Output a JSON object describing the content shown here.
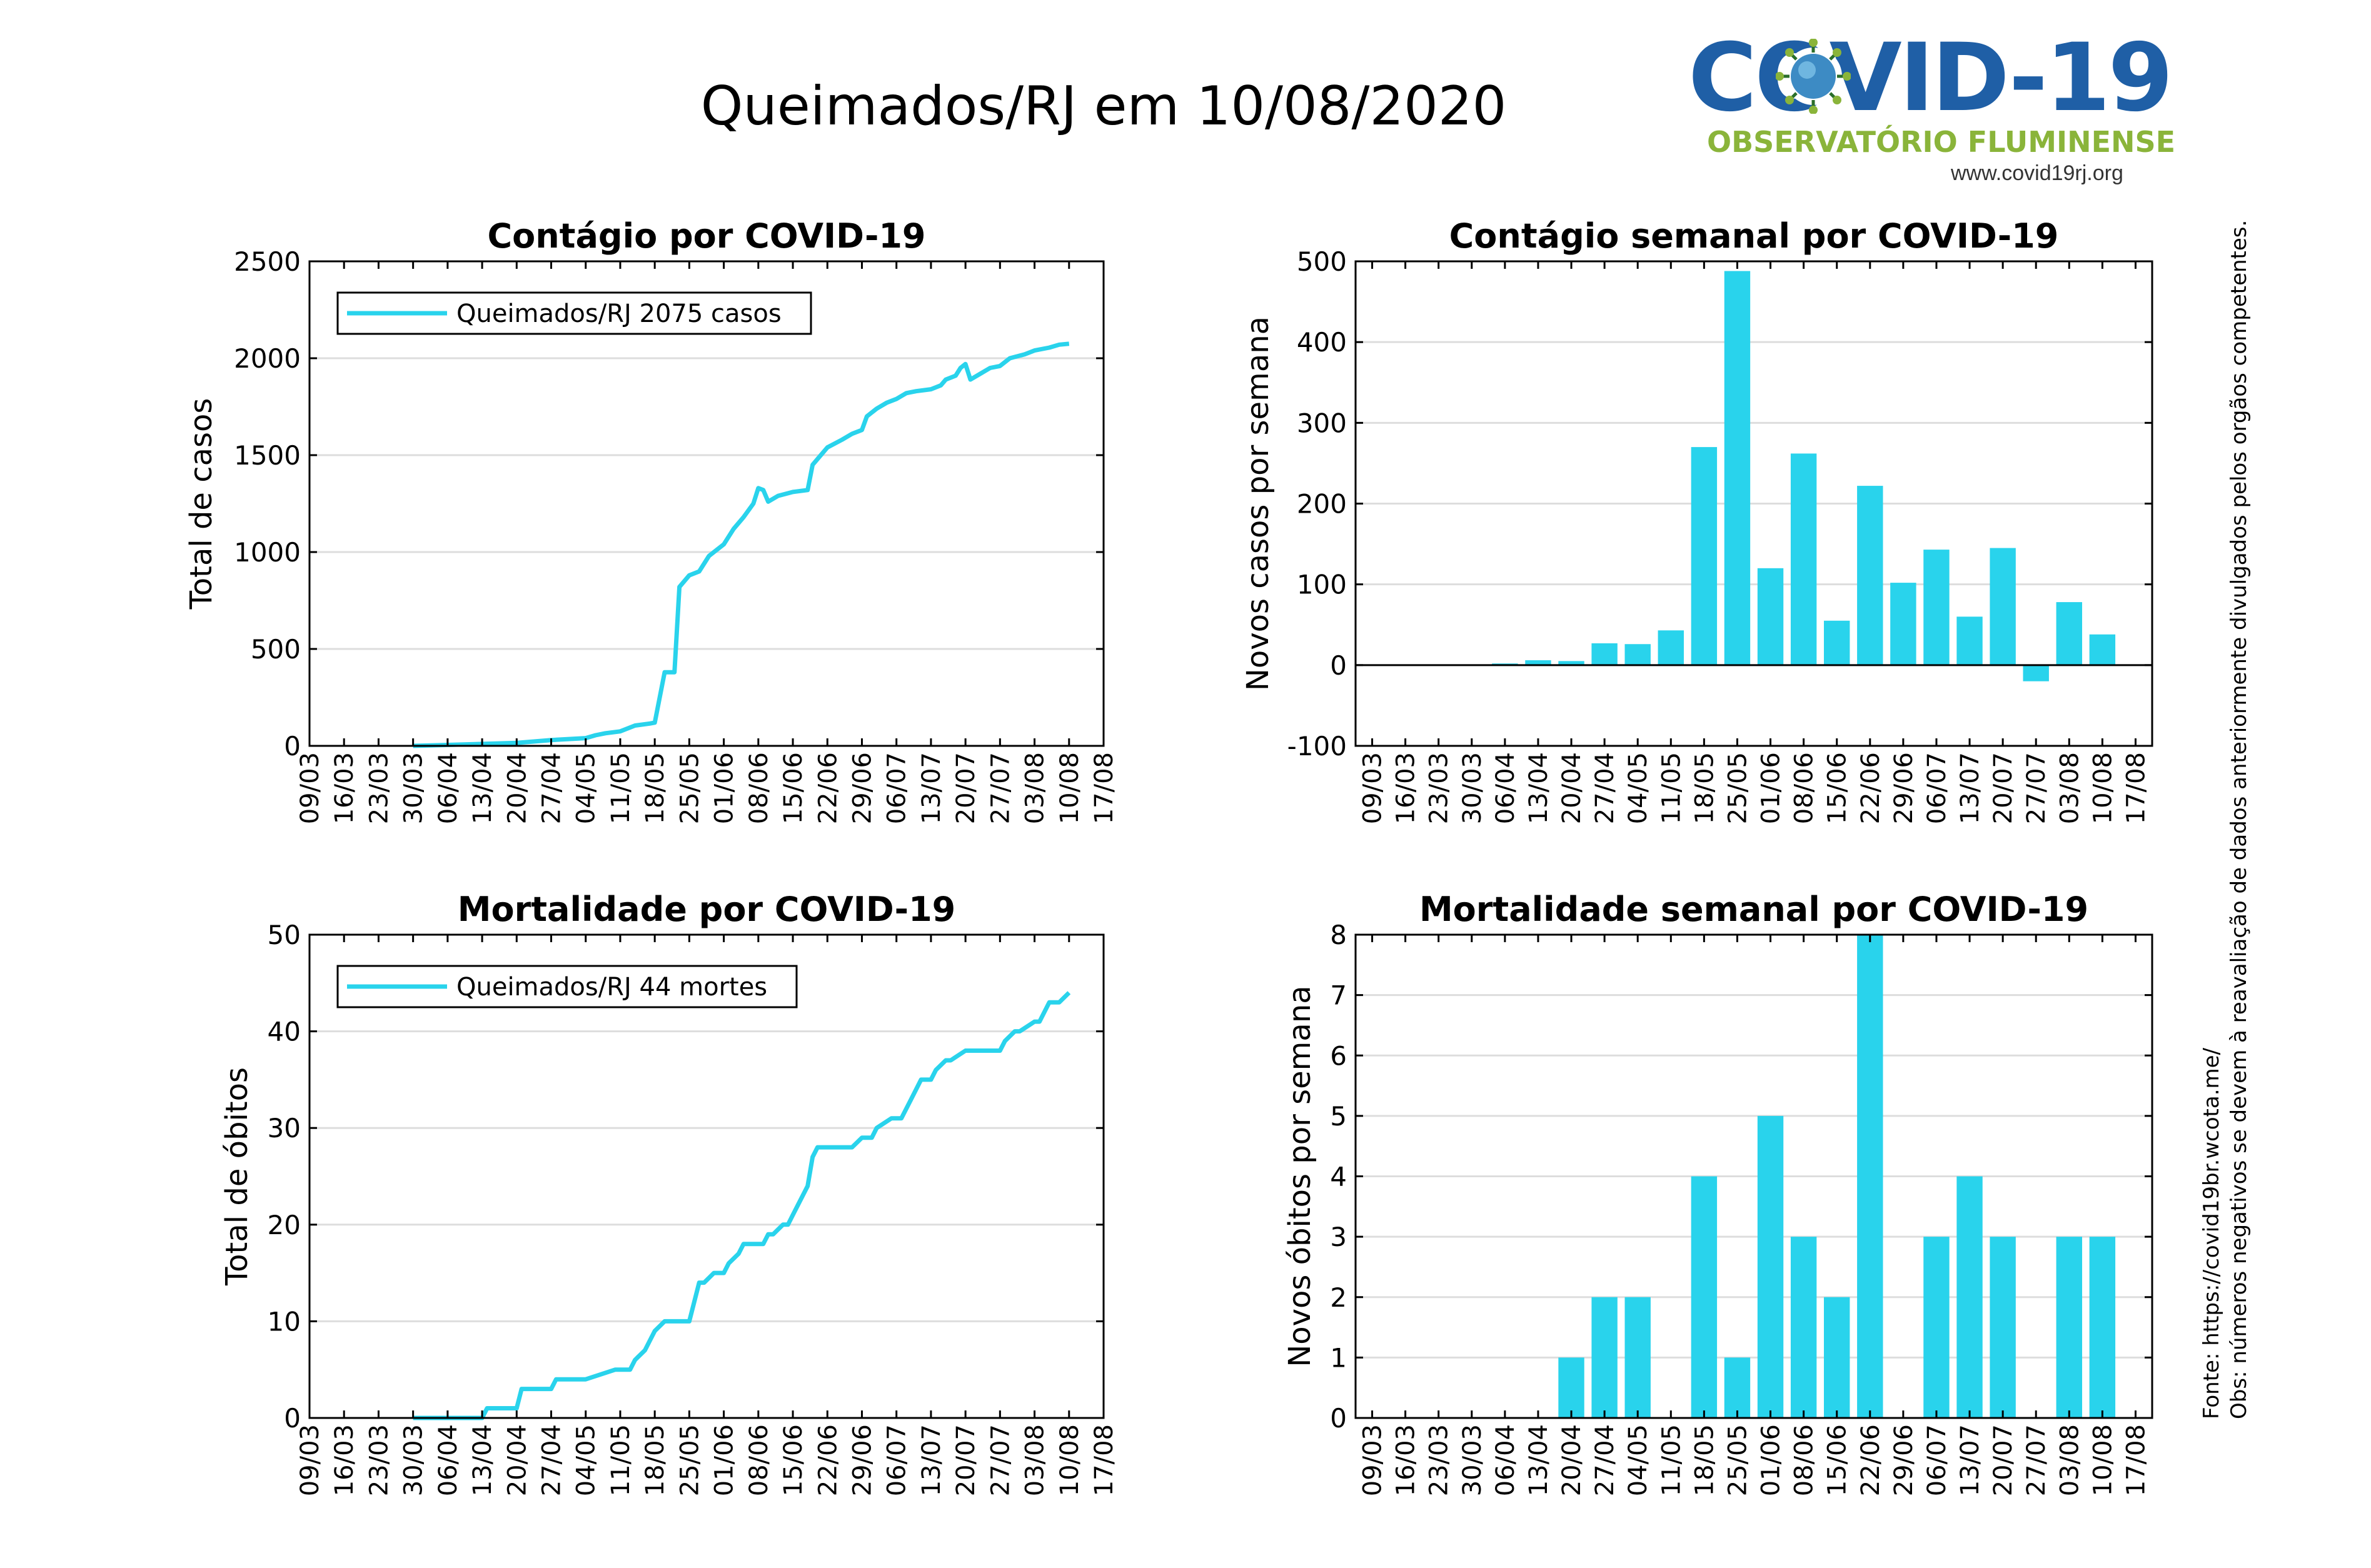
{
  "title": "Queimados/RJ em 10/08/2020",
  "logo": {
    "word": "COVID-19",
    "subtitle": "OBSERVATÓRIO FLUMINENSE",
    "url": "www.covid19rj.org"
  },
  "side_note": {
    "source": "Fonte: https://covid19br.wcota.me/",
    "obs": "Obs: números negativos se devem à reavaliação de dados anteriormente divulgados pelos orgãos competentes."
  },
  "colors": {
    "series": "#29d3ec",
    "grid": "#dddddd"
  },
  "chart_data": [
    {
      "type": "line",
      "title": "Contágio por COVID-19",
      "ylabel": "Total de casos",
      "xlabel": "",
      "x_ticks": [
        "09/03",
        "16/03",
        "23/03",
        "30/03",
        "06/04",
        "13/04",
        "20/04",
        "27/04",
        "04/05",
        "11/05",
        "18/05",
        "25/05",
        "01/06",
        "08/06",
        "15/06",
        "22/06",
        "29/06",
        "06/07",
        "13/07",
        "20/07",
        "27/07",
        "03/08",
        "10/08",
        "17/08"
      ],
      "xlim": [
        "09/03",
        "17/08"
      ],
      "ylim": [
        0,
        2500
      ],
      "y_ticks": [
        0,
        500,
        1000,
        1500,
        2000,
        2500
      ],
      "legend": "Queimados/RJ  2075 casos",
      "legend_position": "top-left",
      "grid": true,
      "series": [
        {
          "name": "Queimados/RJ",
          "x": [
            "30/03",
            "06/04",
            "13/04",
            "20/04",
            "27/04",
            "04/05",
            "06/05",
            "08/05",
            "11/05",
            "14/05",
            "17/05",
            "18/05",
            "20/05",
            "21/05",
            "22/05",
            "23/05",
            "25/05",
            "27/05",
            "29/05",
            "01/06",
            "03/06",
            "05/06",
            "07/06",
            "08/06",
            "09/06",
            "10/06",
            "12/06",
            "15/06",
            "18/06",
            "19/06",
            "20/06",
            "22/06",
            "25/06",
            "27/06",
            "29/06",
            "30/06",
            "02/07",
            "04/07",
            "06/07",
            "08/07",
            "10/07",
            "13/07",
            "15/07",
            "16/07",
            "18/07",
            "19/07",
            "20/07",
            "21/07",
            "23/07",
            "25/07",
            "27/07",
            "29/07",
            "01/08",
            "03/08",
            "06/08",
            "08/08",
            "10/08"
          ],
          "y": [
            0,
            5,
            10,
            15,
            30,
            40,
            55,
            65,
            75,
            105,
            115,
            120,
            380,
            380,
            380,
            820,
            880,
            900,
            980,
            1040,
            1120,
            1180,
            1250,
            1330,
            1320,
            1260,
            1290,
            1310,
            1320,
            1450,
            1480,
            1540,
            1580,
            1610,
            1630,
            1700,
            1740,
            1770,
            1790,
            1820,
            1830,
            1840,
            1860,
            1890,
            1910,
            1950,
            1970,
            1890,
            1920,
            1950,
            1960,
            2000,
            2020,
            2040,
            2055,
            2070,
            2075
          ]
        }
      ]
    },
    {
      "type": "bar",
      "title": "Contágio semanal por COVID-19",
      "ylabel": "Novos casos por semana",
      "xlabel": "",
      "categories": [
        "09/03",
        "16/03",
        "23/03",
        "30/03",
        "06/04",
        "13/04",
        "20/04",
        "27/04",
        "04/05",
        "11/05",
        "18/05",
        "25/05",
        "01/06",
        "08/06",
        "15/06",
        "22/06",
        "29/06",
        "06/07",
        "13/07",
        "20/07",
        "27/07",
        "03/08",
        "10/08",
        "17/08"
      ],
      "values": [
        0,
        0,
        0,
        0,
        2,
        6,
        5,
        27,
        26,
        43,
        270,
        488,
        120,
        262,
        55,
        222,
        102,
        143,
        60,
        145,
        -20,
        78,
        38,
        null
      ],
      "ylim": [
        -100,
        500
      ],
      "y_ticks": [
        -100,
        0,
        100,
        200,
        300,
        400,
        500
      ],
      "grid": true
    },
    {
      "type": "line",
      "title": "Mortalidade por COVID-19",
      "ylabel": "Total de óbitos",
      "xlabel": "",
      "x_ticks": [
        "09/03",
        "16/03",
        "23/03",
        "30/03",
        "06/04",
        "13/04",
        "20/04",
        "27/04",
        "04/05",
        "11/05",
        "18/05",
        "25/05",
        "01/06",
        "08/06",
        "15/06",
        "22/06",
        "29/06",
        "06/07",
        "13/07",
        "20/07",
        "27/07",
        "03/08",
        "10/08",
        "17/08"
      ],
      "xlim": [
        "09/03",
        "17/08"
      ],
      "ylim": [
        0,
        50
      ],
      "y_ticks": [
        0,
        10,
        20,
        30,
        40,
        50
      ],
      "legend": "Queimados/RJ  44 mortes",
      "legend_position": "top-left",
      "grid": true,
      "series": [
        {
          "name": "Queimados/RJ",
          "x": [
            "30/03",
            "13/04",
            "14/04",
            "20/04",
            "21/04",
            "27/04",
            "28/04",
            "03/05",
            "04/05",
            "10/05",
            "11/05",
            "13/05",
            "14/05",
            "16/05",
            "17/05",
            "18/05",
            "20/05",
            "25/05",
            "26/05",
            "27/05",
            "28/05",
            "30/05",
            "01/06",
            "02/06",
            "04/06",
            "05/06",
            "08/06",
            "09/06",
            "10/06",
            "11/06",
            "13/06",
            "14/06",
            "15/06",
            "16/06",
            "18/06",
            "19/06",
            "20/06",
            "26/06",
            "27/06",
            "29/06",
            "01/07",
            "02/07",
            "05/07",
            "06/07",
            "07/07",
            "09/07",
            "10/07",
            "11/07",
            "13/07",
            "14/07",
            "16/07",
            "17/07",
            "20/07",
            "27/07",
            "28/07",
            "30/07",
            "31/07",
            "03/08",
            "04/08",
            "06/08",
            "08/08",
            "10/08"
          ],
          "y": [
            0,
            0,
            1,
            1,
            3,
            3,
            4,
            4,
            4,
            5,
            5,
            5,
            6,
            7,
            8,
            9,
            10,
            10,
            12,
            14,
            14,
            15,
            15,
            16,
            17,
            18,
            18,
            18,
            19,
            19,
            20,
            20,
            21,
            22,
            24,
            27,
            28,
            28,
            28,
            29,
            29,
            30,
            31,
            31,
            31,
            33,
            34,
            35,
            35,
            36,
            37,
            37,
            38,
            38,
            39,
            40,
            40,
            41,
            41,
            43,
            43,
            44
          ]
        }
      ]
    },
    {
      "type": "bar",
      "title": "Mortalidade semanal por COVID-19",
      "ylabel": "Novos óbitos por semana",
      "xlabel": "",
      "categories": [
        "09/03",
        "16/03",
        "23/03",
        "30/03",
        "06/04",
        "13/04",
        "20/04",
        "27/04",
        "04/05",
        "11/05",
        "18/05",
        "25/05",
        "01/06",
        "08/06",
        "15/06",
        "22/06",
        "29/06",
        "06/07",
        "13/07",
        "20/07",
        "27/07",
        "03/08",
        "10/08",
        "17/08"
      ],
      "values": [
        0,
        0,
        0,
        0,
        0,
        0,
        1,
        2,
        2,
        0,
        4,
        1,
        5,
        3,
        2,
        8,
        0,
        3,
        4,
        3,
        0,
        3,
        3,
        null
      ],
      "ylim": [
        0,
        8
      ],
      "y_ticks": [
        0,
        1,
        2,
        3,
        4,
        5,
        6,
        7,
        8
      ],
      "grid": true
    }
  ]
}
